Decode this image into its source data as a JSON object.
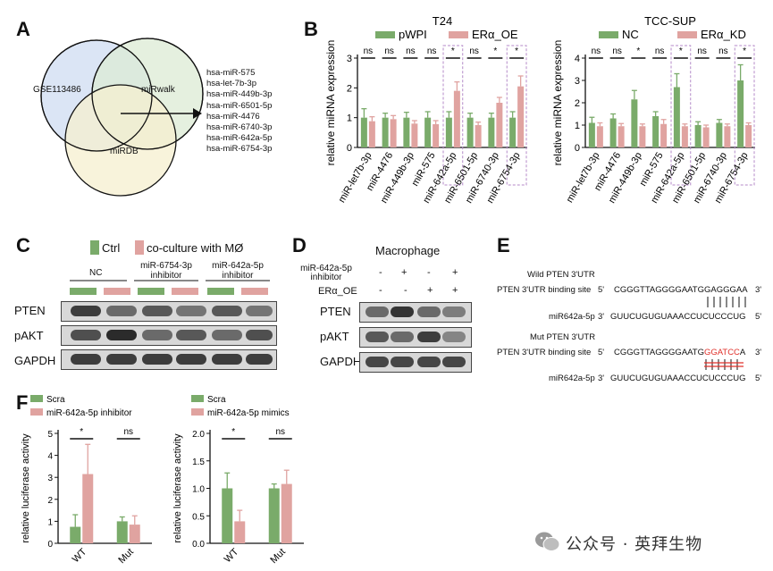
{
  "panel_labels": [
    "A",
    "B",
    "C",
    "D",
    "E",
    "F"
  ],
  "venn": {
    "sets": [
      "GSE113486",
      "miRwalk",
      "miRDB"
    ],
    "set_colors": [
      "#cfdcf2",
      "#dcebd4",
      "#f6efcf"
    ],
    "result_list": [
      "hsa-miR-575",
      "hsa-let-7b-3p",
      "hsa-miR-449b-3p",
      "hsa-miR-6501-5p",
      "hsa-miR-4476",
      "hsa-miR-6740-3p",
      "hsa-miR-642a-5p",
      "hsa-miR-6754-3p"
    ]
  },
  "colors": {
    "green": "#7aab6a",
    "pink": "#e0a3a0",
    "dashed_box": "#b48ac8",
    "red_text": "#e0302a"
  },
  "chart_data": [
    {
      "id": "B-T24",
      "type": "bar",
      "title": "T24",
      "ylabel": "relative miRNA expression",
      "ylim": [
        0,
        3
      ],
      "yticks": [
        0,
        1,
        2,
        3
      ],
      "categories": [
        "miR-let7b-3p",
        "miR-4476",
        "miR-449b-3p",
        "miR-575",
        "miR-642a-5p",
        "miR-6501-5p",
        "miR-6740-3p",
        "miR-6754-3p"
      ],
      "series": [
        {
          "name": "pWPI",
          "color": "#7aab6a",
          "values": [
            1.0,
            1.0,
            1.0,
            1.0,
            1.0,
            1.0,
            1.0,
            1.0
          ],
          "errors": [
            0.3,
            0.15,
            0.18,
            0.2,
            0.2,
            0.15,
            0.15,
            0.2
          ]
        },
        {
          "name": "ERα_OE",
          "color": "#e0a3a0",
          "values": [
            0.88,
            0.95,
            0.8,
            0.78,
            1.9,
            0.75,
            1.5,
            2.05
          ],
          "errors": [
            0.15,
            0.12,
            0.1,
            0.12,
            0.3,
            0.1,
            0.18,
            0.35
          ]
        }
      ],
      "significance": [
        "ns",
        "ns",
        "ns",
        "ns",
        "*",
        "ns",
        "*",
        "*"
      ],
      "highlight": [
        4,
        7
      ]
    },
    {
      "id": "B-TCC-SUP",
      "type": "bar",
      "title": "TCC-SUP",
      "ylabel": "relative miRNA expression",
      "ylim": [
        0,
        4
      ],
      "yticks": [
        0,
        1,
        2,
        3,
        4
      ],
      "categories": [
        "miR-let7b-3p",
        "miR-4476",
        "miR-449b-3p",
        "miR-575",
        "miR-642a-5p",
        "miR-6501-5p",
        "miR-6740-3p",
        "miR-6754-3p"
      ],
      "series": [
        {
          "name": "NC",
          "color": "#7aab6a",
          "values": [
            1.1,
            1.3,
            2.15,
            1.4,
            2.7,
            1.0,
            1.1,
            3.0
          ],
          "errors": [
            0.25,
            0.2,
            0.4,
            0.2,
            0.6,
            0.15,
            0.15,
            0.7
          ]
        },
        {
          "name": "ERα_KD",
          "color": "#e0a3a0",
          "values": [
            0.95,
            0.95,
            0.95,
            1.05,
            0.95,
            0.9,
            0.95,
            1.0
          ],
          "errors": [
            0.15,
            0.12,
            0.1,
            0.2,
            0.1,
            0.1,
            0.1,
            0.1
          ]
        }
      ],
      "significance": [
        "ns",
        "ns",
        "*",
        "ns",
        "*",
        "ns",
        "ns",
        "*"
      ],
      "highlight": [
        4,
        7
      ]
    },
    {
      "id": "F-inhibitor",
      "type": "bar",
      "title": "",
      "ylabel": "relative luciferase activity",
      "ylim": [
        0,
        5
      ],
      "yticks": [
        0,
        1,
        2,
        3,
        4,
        5
      ],
      "categories": [
        "WT",
        "Mut"
      ],
      "series": [
        {
          "name": "Scra",
          "color": "#7aab6a",
          "values": [
            0.75,
            1.0
          ],
          "errors": [
            0.55,
            0.2
          ]
        },
        {
          "name": "miR-642a-5p inhibitor",
          "color": "#e0a3a0",
          "values": [
            3.15,
            0.85
          ],
          "errors": [
            1.35,
            0.4
          ]
        }
      ],
      "significance": [
        "*",
        "ns"
      ]
    },
    {
      "id": "F-mimics",
      "type": "bar",
      "title": "",
      "ylabel": "relative luciferase activity",
      "ylim": [
        0,
        2.0
      ],
      "yticks": [
        0,
        0.5,
        1.0,
        1.5,
        2.0
      ],
      "categories": [
        "WT",
        "Mut"
      ],
      "series": [
        {
          "name": "Scra",
          "color": "#7aab6a",
          "values": [
            1.0,
            1.0
          ],
          "errors": [
            0.28,
            0.08
          ]
        },
        {
          "name": "miR-642a-5p mimics",
          "color": "#e0a3a0",
          "values": [
            0.4,
            1.08
          ],
          "errors": [
            0.2,
            0.25
          ]
        }
      ],
      "significance": [
        "*",
        "ns"
      ]
    }
  ],
  "panelC": {
    "legend": [
      "Ctrl",
      "co-culture with MØ"
    ],
    "groups": [
      "NC",
      "miR-6754-3p\ninhibitor",
      "miR-642a-5p\ninhibitor"
    ],
    "rows": [
      "PTEN",
      "pAKT",
      "GAPDH"
    ]
  },
  "panelD": {
    "title": "Macrophage",
    "conditions": [
      {
        "label": "miR-642a-5p\ninhibitor",
        "signs": [
          "-",
          "+",
          "-",
          "+"
        ]
      },
      {
        "label": "ERα_OE",
        "signs": [
          "-",
          "-",
          "+",
          "+"
        ]
      }
    ],
    "rows": [
      "PTEN",
      "pAKT",
      "GAPDH"
    ]
  },
  "panelE": {
    "wild_title": "Wild PTEN 3'UTR",
    "wild_site_label": "PTEN 3'UTR binding site",
    "wild_site_5": "5'",
    "wild_site_seq": "CGGGTTAGGGGAATGGAGGGAA",
    "wild_site_3": "3'",
    "wild_mir_label": "miR642a-5p",
    "wild_mir_3": "3'",
    "wild_mir_seq": "GUUCUGUGUAAACCUCUCCCUG",
    "wild_mir_5": "5'",
    "mut_title": "Mut PTEN 3'UTR",
    "mut_site_label": "PTEN 3'UTR binding site",
    "mut_site_5": "5'",
    "mut_site_seq_a": "CGGGTTAGGGGAATG",
    "mut_site_seq_red": "GGATCC",
    "mut_site_seq_b": "A",
    "mut_site_3": "3'",
    "mut_mir_label": "miR642a-5p",
    "mut_mir_3": "3'",
    "mut_mir_seq": "GUUCUGUGUAAACCUCUCCCUG",
    "mut_mir_5": "5'"
  },
  "watermark": "公众号 · 英拜生物"
}
